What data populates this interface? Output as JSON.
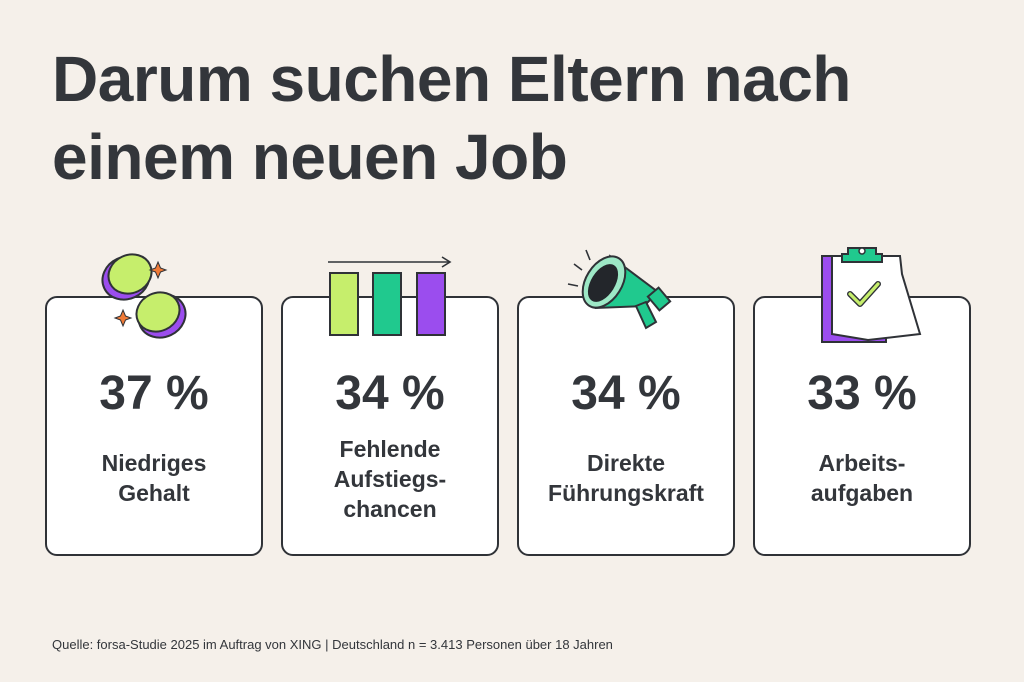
{
  "title_lines": [
    "Darum suchen Eltern nach",
    "einem neuen Job"
  ],
  "chart_data": {
    "type": "table",
    "title": "Darum suchen Eltern nach einem neuen Job",
    "unit": "%",
    "categories": [
      "Niedriges Gehalt",
      "Fehlende Aufstiegschancen",
      "Direkte Führungskraft",
      "Arbeitsaufgaben"
    ],
    "values": [
      37,
      34,
      34,
      33
    ],
    "cards": [
      {
        "value_text": "37 %",
        "label_lines": [
          "Niedriges",
          "Gehalt"
        ],
        "icon": "coins-icon"
      },
      {
        "value_text": "34 %",
        "label_lines": [
          "Fehlende",
          "Aufstiegs-",
          "chancen"
        ],
        "icon": "bar-chart-icon"
      },
      {
        "value_text": "34 %",
        "label_lines": [
          "Direkte",
          "Führungskraft"
        ],
        "icon": "megaphone-icon"
      },
      {
        "value_text": "33 %",
        "label_lines": [
          "Arbeits-",
          "aufgaben"
        ],
        "icon": "clipboard-check-icon"
      }
    ]
  },
  "footer": "Quelle: forsa-Studie 2025 im Auftrag von XING | Deutschland n = 3.413 Personen über 18 Jahren",
  "colors": {
    "background": "#f5f0ea",
    "text": "#33363b",
    "lime": "#c6ee6c",
    "green": "#20c98e",
    "purple": "#9b4dee",
    "orange": "#f07a36"
  }
}
